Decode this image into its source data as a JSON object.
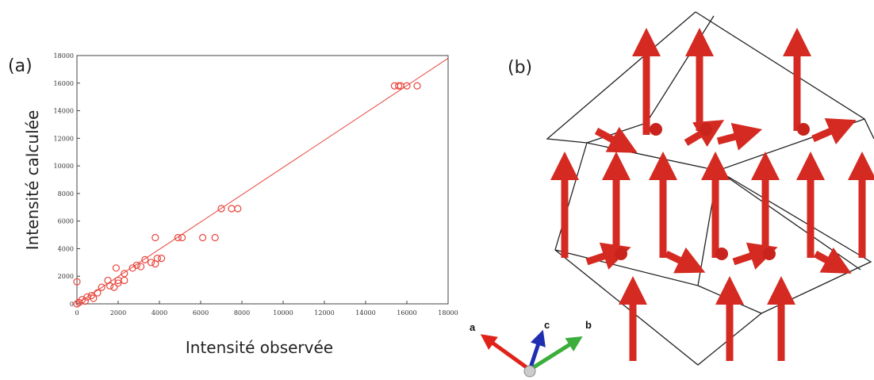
{
  "chart_data": {
    "type": "scatter",
    "panel_label": "(a)",
    "xlabel": "Intensité observée",
    "ylabel": "Intensité calculée",
    "color": "#e8453c",
    "x": [
      0,
      100,
      0,
      250,
      400,
      500,
      700,
      800,
      1000,
      1200,
      1500,
      1600,
      1800,
      1900,
      2000,
      2000,
      2300,
      2300,
      2700,
      2900,
      3100,
      3300,
      3600,
      3800,
      3800,
      3900,
      4100,
      4900,
      5100,
      6100,
      6700,
      7000,
      7500,
      7800,
      15400,
      15600,
      15700,
      16000,
      16500
    ],
    "y": [
      0,
      100,
      1600,
      300,
      200,
      500,
      600,
      400,
      800,
      1200,
      1700,
      1300,
      1200,
      2600,
      1700,
      1500,
      1700,
      2200,
      2600,
      2800,
      2700,
      3200,
      3000,
      2900,
      4800,
      3300,
      3300,
      4800,
      4800,
      4800,
      4800,
      6900,
      6900,
      6900,
      15800,
      15800,
      15800,
      15800,
      15800
    ],
    "line": {
      "x": [
        0,
        18000
      ],
      "y": [
        0,
        17800
      ]
    },
    "xlim": [
      0,
      18000
    ],
    "ylim": [
      0,
      18000
    ],
    "xticks": [
      0,
      2000,
      4000,
      6000,
      8000,
      10000,
      12000,
      14000,
      16000,
      18000
    ],
    "yticks": [
      0,
      2000,
      4000,
      6000,
      8000,
      10000,
      12000,
      14000,
      16000,
      18000
    ]
  },
  "structure": {
    "panel_label": "(b)",
    "axis_a": "a",
    "axis_b": "b",
    "axis_c": "c"
  }
}
